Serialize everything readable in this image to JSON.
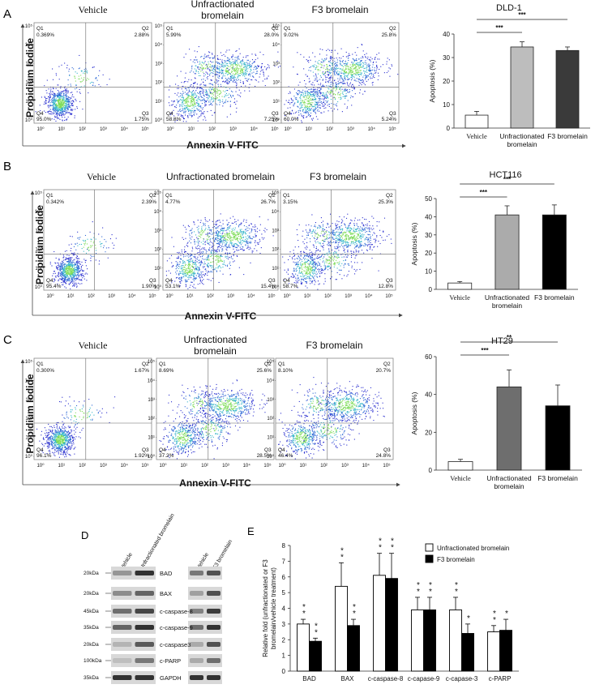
{
  "panels": {
    "A": {
      "letter": "A"
    },
    "B": {
      "letter": "B"
    },
    "C": {
      "letter": "C"
    },
    "D": {
      "letter": "D"
    },
    "E": {
      "letter": "E"
    }
  },
  "flow": {
    "x_label": "Annexin V-FITC",
    "y_label": "Propidium Iodide",
    "rows": [
      {
        "titles": [
          "Vehicle",
          "Unfractionated\nbromelain",
          "F3 bromelain"
        ],
        "quadrants": [
          {
            "Q1": "0.369%",
            "Q2": "2.88%",
            "Q3": "1.75%",
            "Q4": "95.0%"
          },
          {
            "Q1": "5.99%",
            "Q2": "28.0%",
            "Q3": "7.25%",
            "Q4": "58.8%"
          },
          {
            "Q1": "9.02%",
            "Q2": "25.8%",
            "Q3": "5.24%",
            "Q4": "60.0%"
          }
        ]
      },
      {
        "titles": [
          "Vehicle",
          "Unfractionated bromelain",
          "F3 bromelain"
        ],
        "quadrants": [
          {
            "Q1": "0.342%",
            "Q2": "2.39%",
            "Q3": "1.90%",
            "Q4": "95.4%"
          },
          {
            "Q1": "4.77%",
            "Q2": "26.7%",
            "Q3": "15.4%",
            "Q4": "53.1%"
          },
          {
            "Q1": "3.15%",
            "Q2": "25.3%",
            "Q3": "12.8%",
            "Q4": "58.7%"
          }
        ]
      },
      {
        "titles": [
          "Vehicle",
          "Unfractionated\nbromelain",
          "F3 bromelain"
        ],
        "quadrants": [
          {
            "Q1": "0.300%",
            "Q2": "1.67%",
            "Q3": "1.92%",
            "Q4": "96.1%"
          },
          {
            "Q1": "8.69%",
            "Q2": "25.6%",
            "Q3": "28.5%",
            "Q4": "37.2%"
          },
          {
            "Q1": "8.10%",
            "Q2": "20.7%",
            "Q3": "24.8%",
            "Q4": "46.4%"
          }
        ]
      }
    ]
  },
  "western": {
    "lane_labels_left": [
      "Vehicle",
      "Unfractionated bromelain"
    ],
    "lane_labels_right": [
      "Vehicle",
      "F3 bromelain"
    ],
    "markers": [
      "20kDa",
      "20kDa",
      "45kDa",
      "35kDa",
      "20kDa",
      "100kDa",
      "35kDa"
    ],
    "proteins": [
      "BAD",
      "BAX",
      "c-caspase-8",
      "c-caspase-9",
      "c-caspase3",
      "c-PARP",
      "GAPDH"
    ]
  },
  "chart_data": [
    {
      "type": "bar",
      "title": "DLD-1",
      "categories": [
        "Vehicle",
        "Unfractionated\nbromelain",
        "F3 bromelain"
      ],
      "values": [
        5.5,
        34.5,
        33
      ],
      "errors": [
        1.6,
        2.2,
        1.5
      ],
      "colors": [
        "#ffffff",
        "#bdbdbd",
        "#3a3a3a"
      ],
      "ylabel": "Apoptosis (%)",
      "ylim": [
        0,
        40
      ],
      "yticks": [
        0,
        10,
        20,
        30,
        40
      ],
      "significance": [
        {
          "from": 0,
          "to": 1,
          "label": "***"
        },
        {
          "from": 0,
          "to": 2,
          "label": "***"
        }
      ]
    },
    {
      "type": "bar",
      "title": "HCT116",
      "categories": [
        "Vehicle",
        "Unfractionated\nbromelain",
        "F3 bromelain"
      ],
      "values": [
        3.5,
        41,
        41
      ],
      "errors": [
        0.8,
        5,
        5.5
      ],
      "colors": [
        "#ffffff",
        "#ababab",
        "#000000"
      ],
      "ylabel": "Apoptosis (%)",
      "ylim": [
        0,
        50
      ],
      "yticks": [
        0,
        10,
        20,
        30,
        40,
        50
      ],
      "significance": [
        {
          "from": 0,
          "to": 1,
          "label": "***"
        },
        {
          "from": 0,
          "to": 2,
          "label": "***"
        }
      ]
    },
    {
      "type": "bar",
      "title": "HT29",
      "categories": [
        "Vehicle",
        "Unfractionated\nbromelain",
        "F3 bromelain"
      ],
      "values": [
        4.5,
        44,
        34
      ],
      "errors": [
        1.2,
        9,
        11
      ],
      "colors": [
        "#ffffff",
        "#6e6e6e",
        "#000000"
      ],
      "ylabel": "Apoptosis  (%)",
      "ylim": [
        0,
        60
      ],
      "yticks": [
        0,
        20,
        40,
        60
      ],
      "significance": [
        {
          "from": 0,
          "to": 1,
          "label": "***"
        },
        {
          "from": 0,
          "to": 2,
          "label": "**"
        }
      ]
    },
    {
      "type": "bar",
      "title": "",
      "categories": [
        "BAD",
        "BAX",
        "c-caspase-8",
        "c-capase-9",
        "c-capase-3",
        "c-PARP"
      ],
      "series": [
        {
          "name": "Unfractionated bromelain",
          "color": "#ffffff",
          "values": [
            3.0,
            5.4,
            6.1,
            3.9,
            3.9,
            2.5
          ],
          "errors": [
            0.3,
            1.5,
            1.4,
            0.8,
            0.8,
            0.4
          ],
          "stars": [
            "**",
            "**",
            "**",
            "**",
            "**",
            "**"
          ]
        },
        {
          "name": "F3 bromelain",
          "color": "#000000",
          "values": [
            1.9,
            2.9,
            5.9,
            3.9,
            2.4,
            2.6
          ],
          "errors": [
            0.2,
            0.4,
            1.6,
            0.8,
            0.6,
            0.7
          ],
          "stars": [
            "**",
            "**",
            "**",
            "**",
            "*",
            "*"
          ]
        }
      ],
      "ylabel": "Relative fold (unfractionated or F3 bromelain/vehicle treatment)",
      "ylim": [
        0,
        8
      ],
      "yticks": [
        0,
        1,
        2,
        3,
        4,
        5,
        6,
        7,
        8
      ]
    }
  ]
}
